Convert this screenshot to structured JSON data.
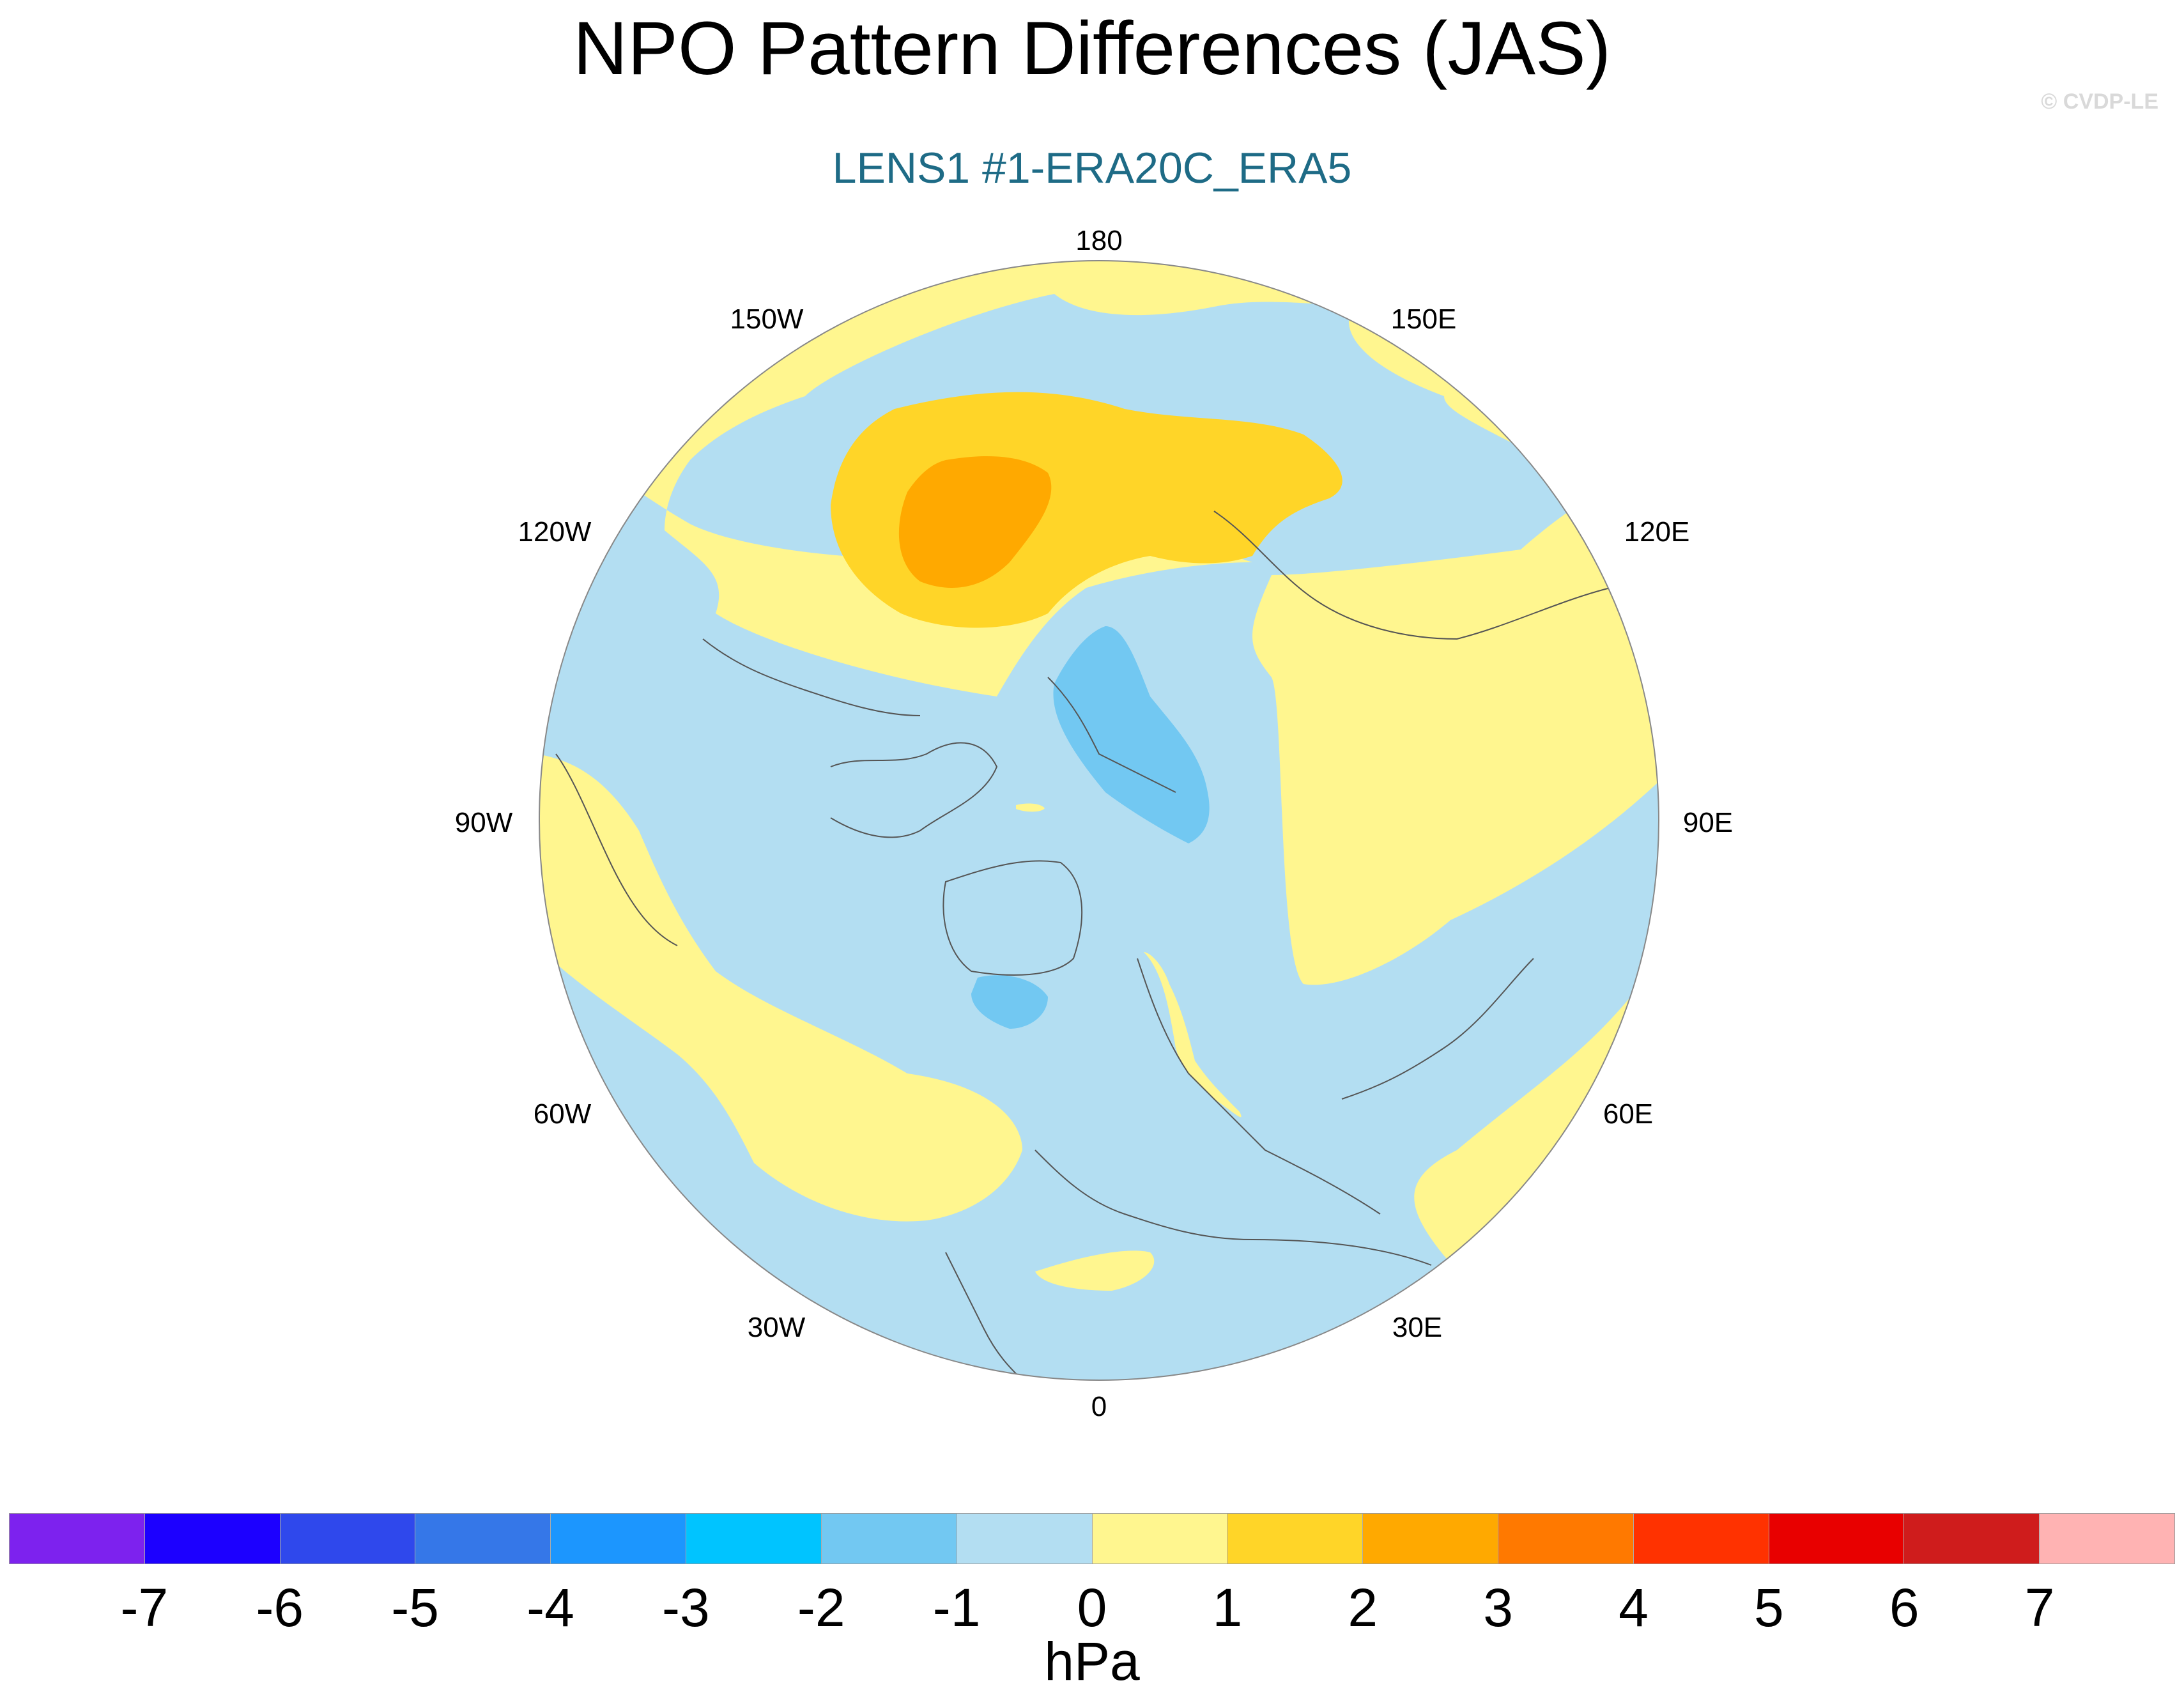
{
  "title": "NPO Pattern Differences (JAS)",
  "subtitle": "LENS1 #1-ERA20C_ERA5",
  "watermark": "© CVDP-LE",
  "longitude_labels": {
    "lon_180": "180",
    "lon_150e": "150E",
    "lon_120e": "120E",
    "lon_90e": "90E",
    "lon_60e": "60E",
    "lon_30e": "30E",
    "lon_0": "0",
    "lon_30w": "30W",
    "lon_60w": "60W",
    "lon_90w": "90W",
    "lon_120w": "120W",
    "lon_150w": "150W"
  },
  "colorbar": {
    "colors": [
      "#7d22ee",
      "#1c00ff",
      "#2f48ec",
      "#3577e8",
      "#1c96fe",
      "#00c4ff",
      "#72c8f2",
      "#b3def2",
      "#fff68f",
      "#ffd528",
      "#ffa900",
      "#ff7900",
      "#ff3200",
      "#e80000",
      "#cf1c1c",
      "#ffb3b3"
    ],
    "ticks": [
      "-7",
      "-6",
      "-5",
      "-4",
      "-3",
      "-2",
      "-1",
      "0",
      "1",
      "2",
      "3",
      "4",
      "5",
      "6",
      "7"
    ],
    "units": "hPa"
  },
  "map": {
    "projection": "north-polar-stereographic",
    "fill_colors": {
      "neg2": "#72c8f2",
      "neg1": "#b3def2",
      "pos0": "#fff68f",
      "pos1": "#ffd528",
      "pos2": "#ffa900"
    },
    "coastline_color": "#555555"
  }
}
